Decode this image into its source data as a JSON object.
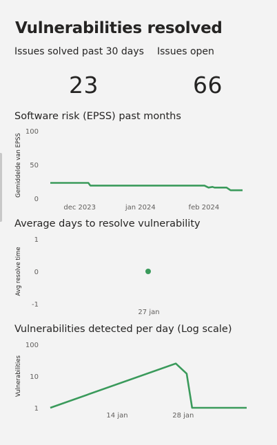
{
  "page": {
    "title": "Vulnerabilities resolved"
  },
  "kpis": [
    {
      "label": "Issues solved past 30 days",
      "value": "23"
    },
    {
      "label": "Issues open",
      "value": "66"
    }
  ],
  "colors": {
    "series": "#3a9a5b",
    "axis_text": "#605e5c",
    "background": "#f3f3f3"
  },
  "chart_data": [
    {
      "type": "line",
      "title": "Software risk (EPSS) past months",
      "ylabel": "Gemiddelde van EPSS",
      "xlabel": "",
      "ylim": [
        0,
        100
      ],
      "yticks": [
        "100",
        "50",
        "0"
      ],
      "xticks": [
        "dec 2023",
        "jan 2024",
        "feb 2024"
      ],
      "series": [
        {
          "points": [
            [
              "2023-11-17",
              23
            ],
            [
              "2023-12-01",
              23
            ],
            [
              "2023-12-06",
              23
            ],
            [
              "2023-12-07",
              19
            ],
            [
              "2024-01-15",
              19
            ],
            [
              "2024-02-02",
              19
            ],
            [
              "2024-02-04",
              16
            ],
            [
              "2024-02-06",
              17
            ],
            [
              "2024-02-07",
              16
            ],
            [
              "2024-02-13",
              16
            ],
            [
              "2024-02-15",
              12
            ],
            [
              "2024-02-21",
              12
            ]
          ]
        }
      ]
    },
    {
      "type": "scatter",
      "title": "Average days to resolve vulnerability",
      "ylabel": "Avg resolve time",
      "xlabel": "",
      "ylim": [
        -1,
        1
      ],
      "yticks": [
        "1",
        "0",
        "-1"
      ],
      "xticks": [
        "27 jan"
      ],
      "series": [
        {
          "points": [
            [
              "2024-01-27",
              0
            ]
          ]
        }
      ]
    },
    {
      "type": "line",
      "title": "Vulnerabilities detected per day (Log scale)",
      "ylabel": "Vulnerabilities",
      "xlabel": "",
      "yscale": "log",
      "ylim": [
        1,
        100
      ],
      "yticks": [
        "100",
        "10",
        "1"
      ],
      "xticks": [
        "14 jan",
        "28 jan"
      ],
      "series": [
        {
          "points": [
            [
              "2024-01-02",
              1
            ],
            [
              "2024-01-25",
              25
            ],
            [
              "2024-01-27",
              12
            ],
            [
              "2024-01-28",
              1
            ],
            [
              "2024-02-07",
              1
            ]
          ]
        }
      ]
    }
  ]
}
